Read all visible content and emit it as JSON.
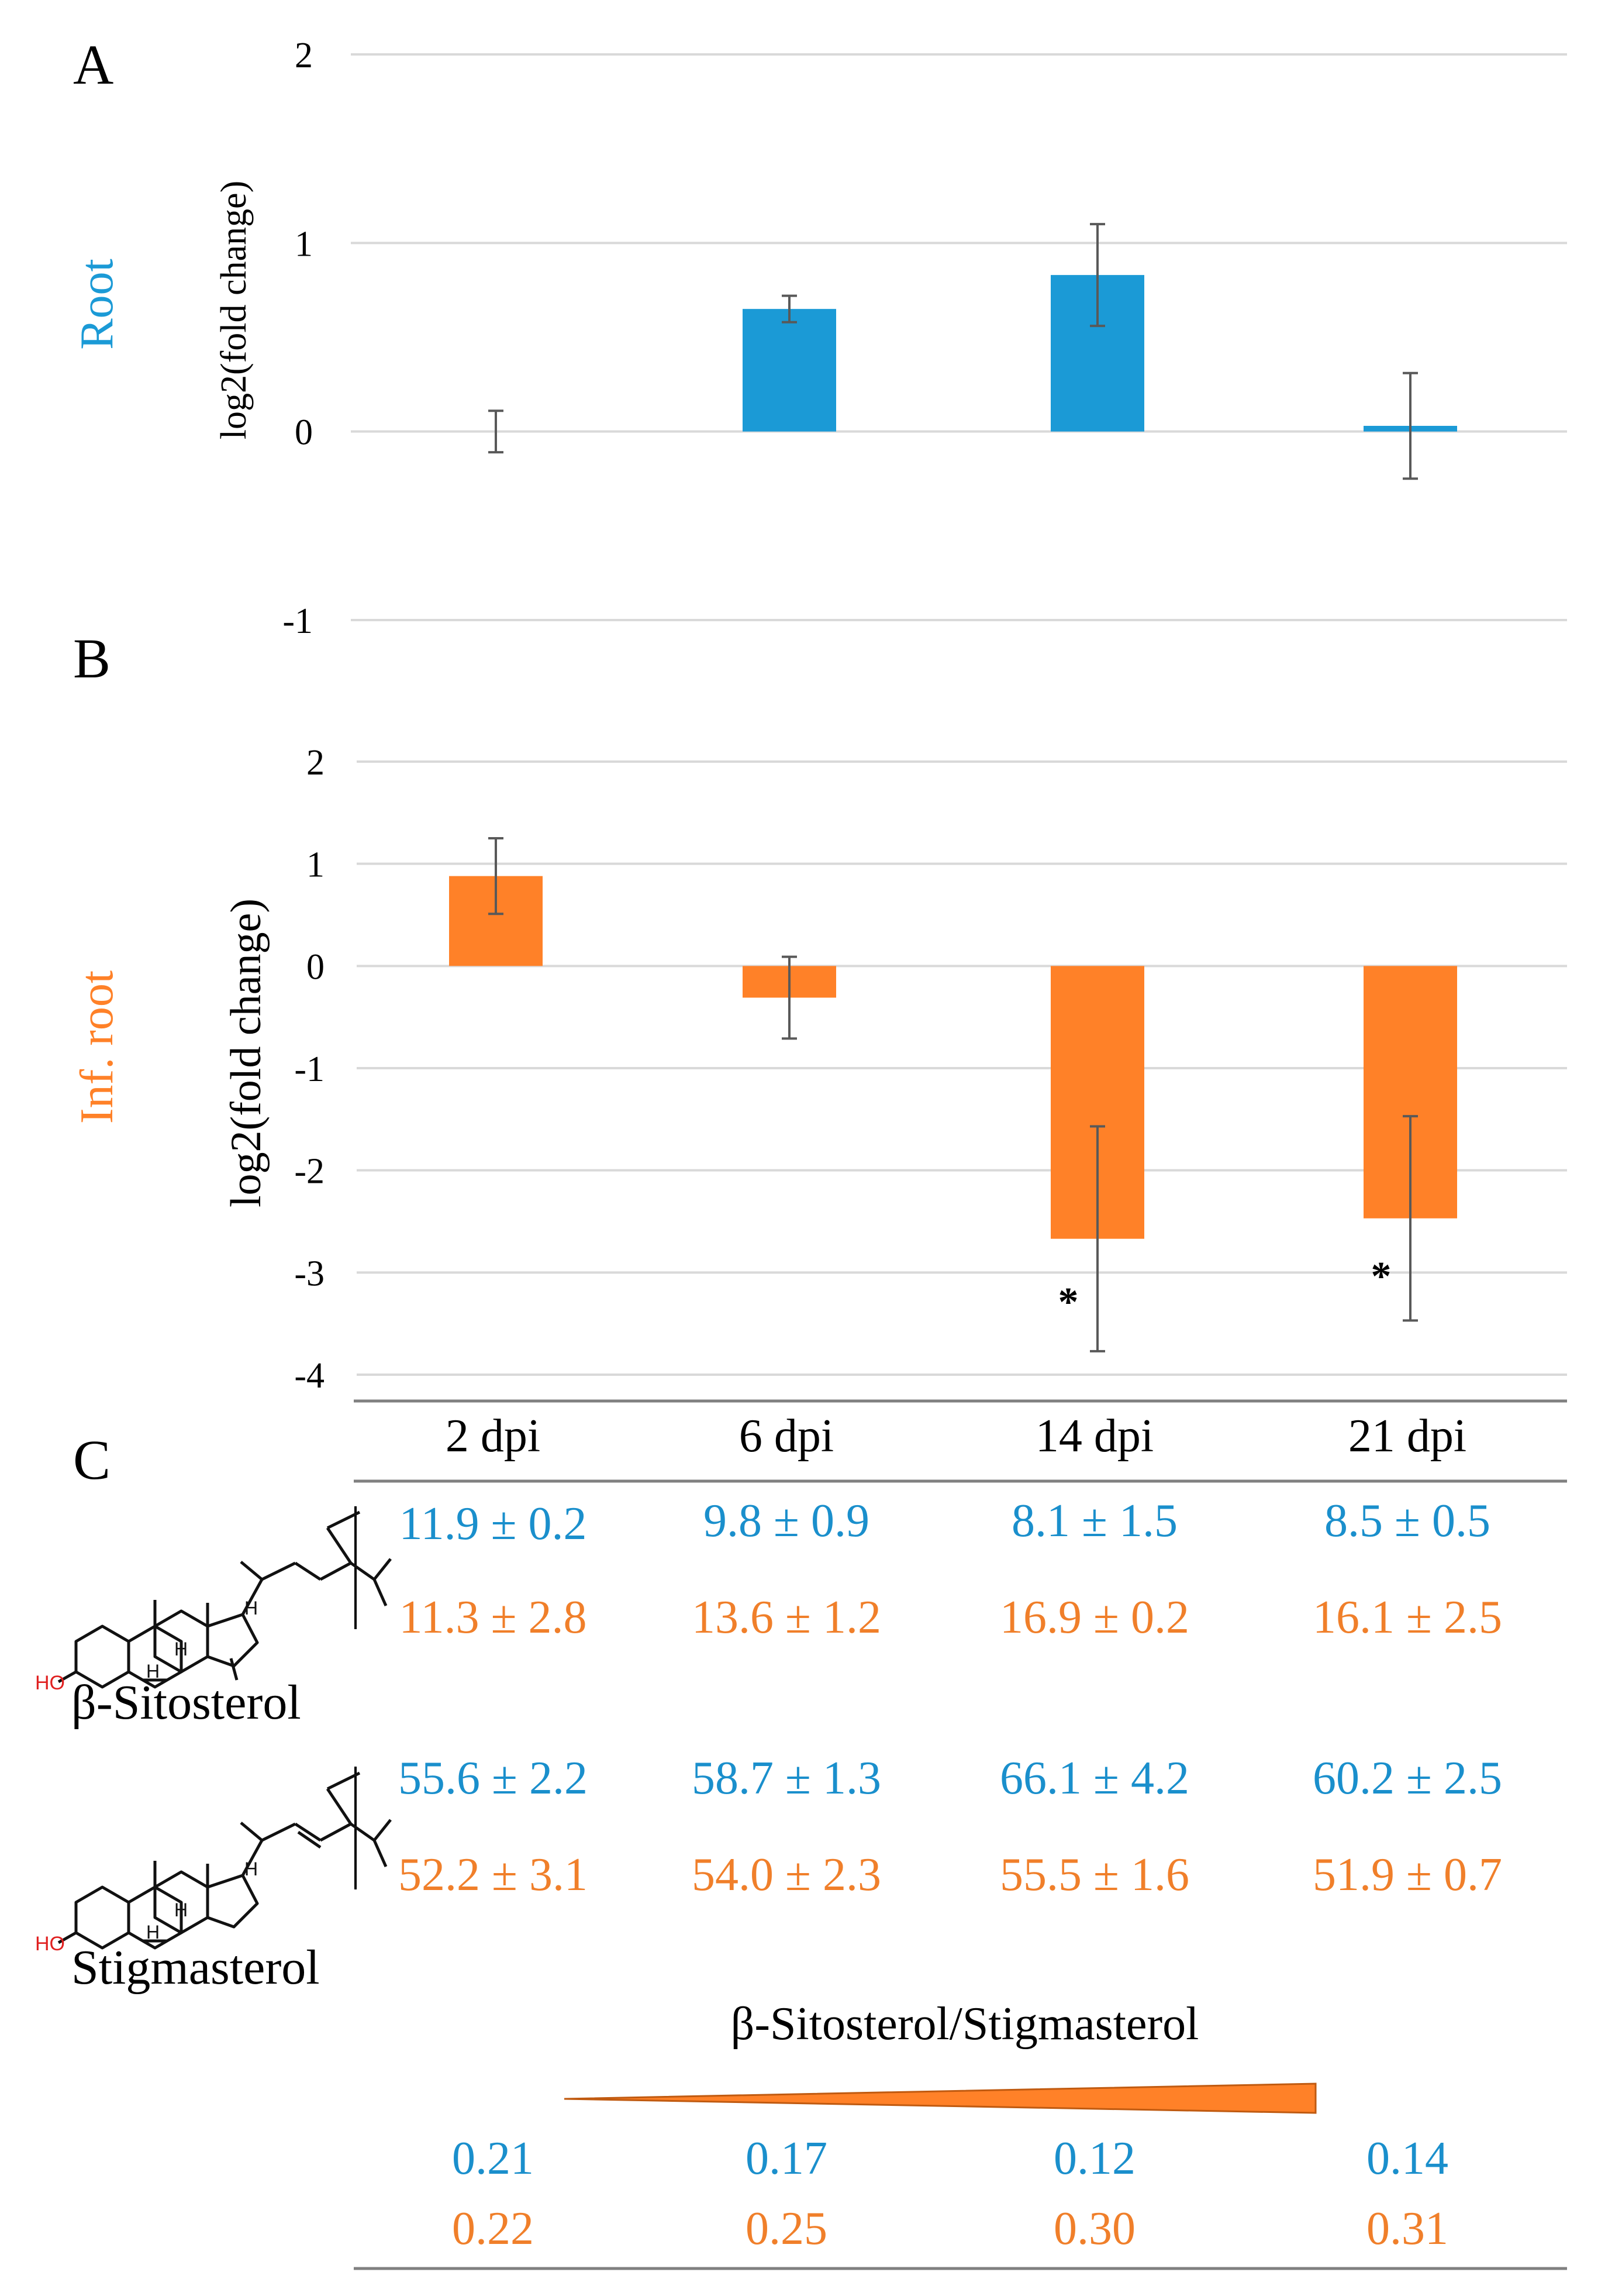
{
  "panels": {
    "a": "A",
    "b": "B",
    "c": "C"
  },
  "colors": {
    "root": "#1B9AD6",
    "inf_root": "#FF8128",
    "blue_text": "#1A8FCC",
    "orange_text": "#F07F2A",
    "grid": "#D9D9D9",
    "axis": "#808080"
  },
  "chart_data": [
    {
      "type": "bar",
      "panel": "A",
      "row_label": "Root",
      "ylabel": "log2(fold change)",
      "ylim": [
        -1,
        2
      ],
      "yticks": [
        2,
        1,
        0,
        -1
      ],
      "categories": [
        "2 dpi",
        "6 dpi",
        "14 dpi",
        "21 dpi"
      ],
      "series": [
        {
          "name": "Root",
          "values": [
            0.0,
            0.65,
            0.83,
            0.03
          ],
          "errors": [
            0.11,
            0.07,
            0.27,
            0.28
          ]
        }
      ],
      "annotations": []
    },
    {
      "type": "bar",
      "panel": "B",
      "row_label": "Inf. root",
      "ylabel": "log2(fold change)",
      "ylim": [
        -4,
        2
      ],
      "yticks": [
        2,
        1,
        0,
        -1,
        -2,
        -3,
        -4
      ],
      "categories": [
        "2 dpi",
        "6 dpi",
        "14 dpi",
        "21 dpi"
      ],
      "series": [
        {
          "name": "Inf. root",
          "values": [
            0.88,
            -0.31,
            -2.67,
            -2.47
          ],
          "errors": [
            0.37,
            0.4,
            1.1,
            1.0
          ]
        }
      ],
      "annotations": [
        "",
        "",
        "*",
        "*"
      ]
    }
  ],
  "table": {
    "headers": [
      "2 dpi",
      "6 dpi",
      "14 dpi",
      "21 dpi"
    ],
    "compounds": [
      {
        "name": "β-Sitosterol",
        "root": [
          "11.9 ± 0.2",
          "9.8 ± 0.9",
          "8.1 ± 1.5",
          "8.5 ± 0.5"
        ],
        "inf_root": [
          "11.3 ± 2.8",
          "13.6 ± 1.2",
          "16.9 ± 0.2",
          "16.1 ± 2.5"
        ]
      },
      {
        "name": "Stigmasterol",
        "root": [
          "55.6 ± 2.2",
          "58.7 ± 1.3",
          "66.1 ± 4.2",
          "60.2 ± 2.5"
        ],
        "inf_root": [
          "52.2 ± 3.1",
          "54.0 ± 2.3",
          "55.5 ± 1.6",
          "51.9 ± 0.7"
        ]
      }
    ],
    "ratio_title": "β-Sitosterol/Stigmasterol",
    "ratio_root": [
      "0.21",
      "0.17",
      "0.12",
      "0.14"
    ],
    "ratio_inf_root": [
      "0.22",
      "0.25",
      "0.30",
      "0.31"
    ]
  },
  "molecule_labels": {
    "ho": "HO",
    "h": "H"
  }
}
